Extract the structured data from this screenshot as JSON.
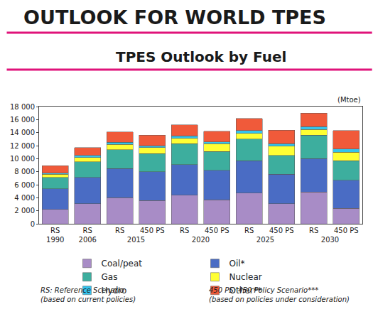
{
  "chart_data": {
    "type": "bar",
    "stacked": true,
    "header": "OUTLOOK FOR WORLD TPES",
    "title": "TPES Outlook by Fuel",
    "y_label": "(Mtoe)",
    "categories": [
      [
        "RS",
        "1990"
      ],
      [
        "RS",
        "2006"
      ],
      [
        "RS",
        "2015"
      ],
      [
        "450 PS",
        "2015"
      ],
      [
        "RS",
        "2020"
      ],
      [
        "450 PS",
        "2020"
      ],
      [
        "RS",
        "2025"
      ],
      [
        "450 PS",
        "2025"
      ],
      [
        "RS",
        "2030"
      ],
      [
        "450 PS",
        "2030"
      ]
    ],
    "series": [
      {
        "name": "Coal/peat",
        "color": "#a88cc6",
        "values": [
          2200,
          3100,
          4000,
          3600,
          4400,
          3700,
          4700,
          3100,
          4900,
          2400
        ]
      },
      {
        "name": "Oil*",
        "color": "#4a6cc4",
        "values": [
          3200,
          4000,
          4500,
          4400,
          4700,
          4500,
          5000,
          4500,
          5100,
          4300
        ]
      },
      {
        "name": "Gas",
        "color": "#3dae9e",
        "values": [
          1700,
          2400,
          2900,
          2800,
          3200,
          2900,
          3300,
          2900,
          3600,
          3000
        ]
      },
      {
        "name": "Nuclear",
        "color": "#ffff33",
        "values": [
          500,
          700,
          800,
          900,
          800,
          1200,
          900,
          1400,
          900,
          1300
        ]
      },
      {
        "name": "Hydro",
        "color": "#33c4ee",
        "values": [
          200,
          300,
          300,
          300,
          400,
          300,
          400,
          400,
          400,
          500
        ]
      },
      {
        "name": "Other**",
        "color": "#f05a3a",
        "values": [
          1100,
          1200,
          1600,
          1600,
          1700,
          1600,
          1900,
          2100,
          2100,
          2800
        ]
      }
    ],
    "ylim": [
      0,
      18000
    ],
    "yticks": [
      0,
      {
        "value": 2000,
        "label": "2 000"
      },
      {
        "value": 4000,
        "label": "4 000"
      },
      {
        "value": 6000,
        "label": "6 000"
      },
      {
        "value": 8000,
        "label": "8 000"
      },
      {
        "value": 10000,
        "label": "10 000"
      },
      {
        "value": 12000,
        "label": "12 000"
      },
      {
        "value": 14000,
        "label": "14 000"
      },
      {
        "value": 16000,
        "label": "16 000"
      },
      {
        "value": 18000,
        "label": "18 000"
      }
    ],
    "grid": false,
    "legend": "bottom",
    "notes": [
      [
        "RS: Reference Scenario",
        "(based on current policies)"
      ],
      [
        "450 PS: 450 Policy Scenario***",
        "(based on policies under consideration)"
      ]
    ]
  }
}
